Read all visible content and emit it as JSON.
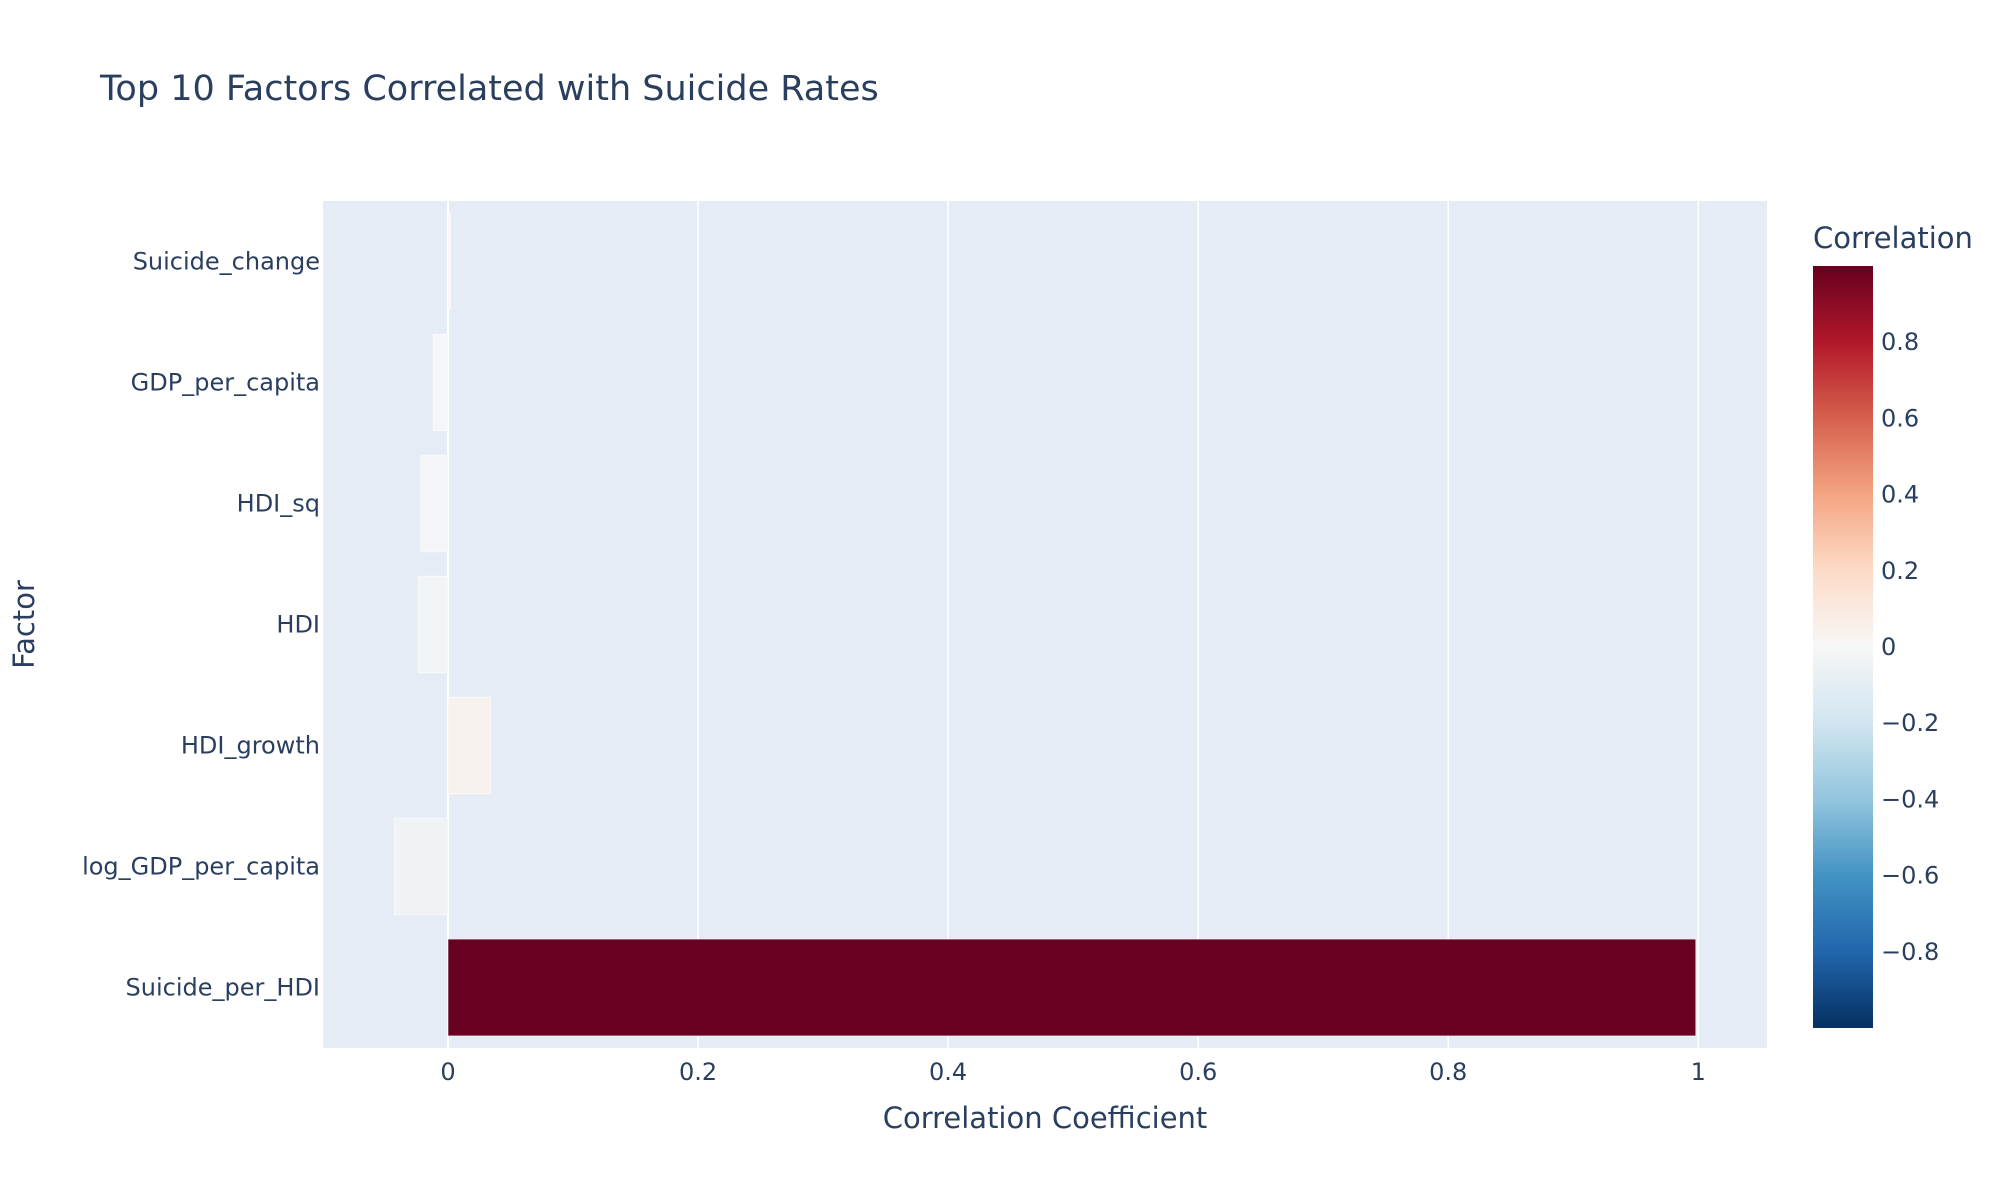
{
  "chart_data": {
    "type": "bar",
    "orientation": "horizontal",
    "title": "Top 10 Factors Correlated with Suicide Rates",
    "xlabel": "Correlation Coefficient",
    "ylabel": "Factor",
    "categories": [
      "Suicide_change",
      "GDP_per_capita",
      "HDI_sq",
      "HDI",
      "HDI_growth",
      "log_GDP_per_capita",
      "Suicide_per_HDI"
    ],
    "values": [
      0.002,
      -0.012,
      -0.022,
      -0.024,
      0.034,
      -0.043,
      0.998
    ],
    "xlim": [
      -0.1,
      1.055
    ],
    "xticks": [
      0,
      0.2,
      0.4,
      0.6,
      0.8,
      1
    ],
    "xtick_labels": [
      "0",
      "0.2",
      "0.4",
      "0.6",
      "0.8",
      "1"
    ],
    "grid": true,
    "colorbar": {
      "title": "Correlation",
      "range": [
        -1,
        1
      ],
      "ticks": [
        0.8,
        0.6,
        0.4,
        0.2,
        0,
        -0.2,
        -0.4,
        -0.6,
        -0.8
      ],
      "tick_labels": [
        "0.8",
        "0.6",
        "0.4",
        "0.2",
        "0",
        "−0.2",
        "−0.4",
        "−0.6",
        "−0.8"
      ],
      "colorscale": [
        [
          0.0,
          "#053061"
        ],
        [
          0.1,
          "#2166ac"
        ],
        [
          0.2,
          "#4393c3"
        ],
        [
          0.3,
          "#92c5de"
        ],
        [
          0.4,
          "#d1e5f0"
        ],
        [
          0.5,
          "#f7f7f7"
        ],
        [
          0.6,
          "#fddbc7"
        ],
        [
          0.7,
          "#f4a582"
        ],
        [
          0.8,
          "#d6604d"
        ],
        [
          0.9,
          "#b2182b"
        ],
        [
          1.0,
          "#67001f"
        ]
      ]
    },
    "colors": {
      "plot_bg": "#e5ecf6",
      "grid": "#ffffff",
      "text": "#2a3f5f"
    }
  }
}
